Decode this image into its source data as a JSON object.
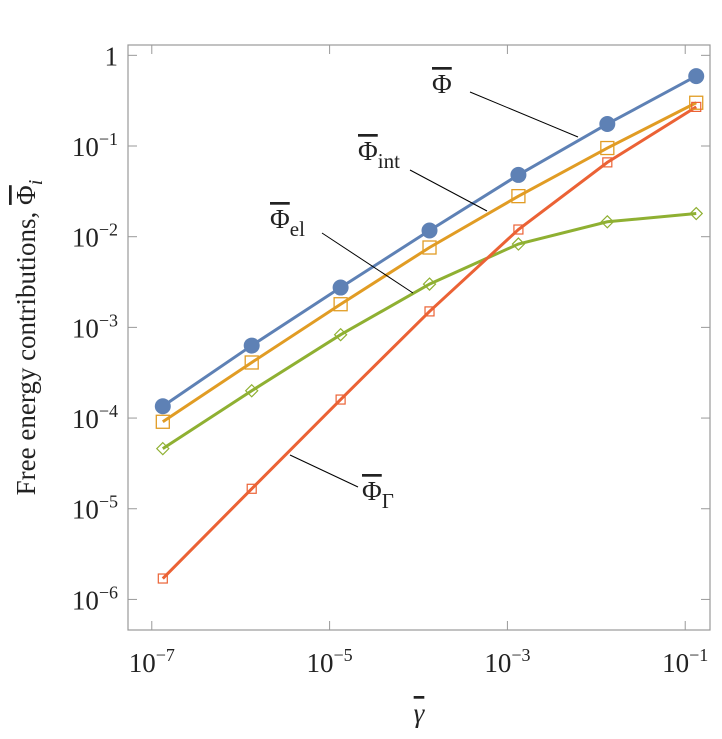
{
  "chart_data": {
    "type": "line",
    "log_x": true,
    "log_y": true,
    "xlabel": "γ",
    "ylabel": "Free energy contributions, ",
    "ylabel_symbol": "Φ",
    "ylabel_sub": "i",
    "x": [
      1.33e-07,
      1.33e-06,
      1.33e-05,
      0.000133,
      0.00133,
      0.0133,
      0.133
    ],
    "xlim": [
      5.4e-08,
      0.19
    ],
    "ylim": [
      4.6e-07,
      1.3
    ],
    "xticks": [
      {
        "value": 1e-07,
        "label": "10",
        "sup": "−7"
      },
      {
        "value": 1e-05,
        "label": "10",
        "sup": "−5"
      },
      {
        "value": 0.001,
        "label": "10",
        "sup": "−3"
      },
      {
        "value": 0.1,
        "label": "10",
        "sup": "−1"
      }
    ],
    "yticks": [
      1,
      {
        "value": 0.1,
        "label": "10",
        "sup": "−1"
      },
      {
        "value": 0.01,
        "label": "10",
        "sup": "−2"
      },
      {
        "value": 0.001,
        "label": "10",
        "sup": "−3"
      },
      {
        "value": 0.0001,
        "label": "10",
        "sup": "−4"
      },
      {
        "value": 1e-05,
        "label": "10",
        "sup": "−5"
      },
      {
        "value": 1e-06,
        "label": "10",
        "sup": "−6"
      }
    ],
    "series": [
      {
        "name": "Φ",
        "color": "#5e81b5",
        "marker": "circle",
        "values": [
          0.000135,
          0.00063,
          0.00275,
          0.0117,
          0.048,
          0.175,
          0.59
        ]
      },
      {
        "name": "Φ",
        "name_sub": "int",
        "color": "#e19c24",
        "marker": "square",
        "values": [
          9.1e-05,
          0.00041,
          0.0018,
          0.0076,
          0.028,
          0.095,
          0.3
        ]
      },
      {
        "name": "Φ",
        "name_sub": "el",
        "color": "#8fb032",
        "marker": "diamond",
        "values": [
          4.6e-05,
          0.0002,
          0.00083,
          0.003,
          0.0083,
          0.0146,
          0.018
        ]
      },
      {
        "name": "Φ",
        "name_sub": "Γ",
        "color": "#eb6235",
        "marker": "smallsquare",
        "values": [
          1.7e-06,
          1.66e-05,
          0.00016,
          0.0015,
          0.012,
          0.066,
          0.27
        ]
      }
    ]
  }
}
